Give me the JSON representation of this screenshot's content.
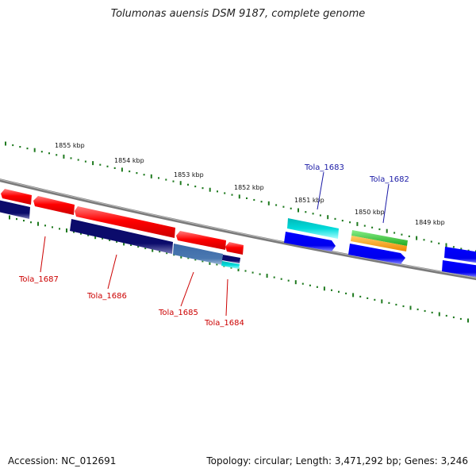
{
  "title": "Tolumonas auensis DSM 9187, complete genome",
  "footer": {
    "accession": "Accession: NC_012691",
    "summary": "Topology: circular; Length: 3,471,292 bp; Genes: 3,246"
  },
  "kbp_labels": [
    "1855 kbp",
    "1854 kbp",
    "1853 kbp",
    "1852 kbp",
    "1851 kbp",
    "1850 kbp",
    "1849 kbp"
  ],
  "gene_labels": {
    "tola_1683": "Tola_1683",
    "tola_1682": "Tola_1682",
    "tola_1687": "Tola_1687",
    "tola_1686": "Tola_1686",
    "tola_1685": "Tola_1685",
    "tola_1684": "Tola_1684"
  },
  "colors": {
    "forward_label": "#1a1aa6",
    "reverse_label": "#cc0000",
    "red": "#ff0000",
    "navy": "#0b0b6b",
    "blue": "#0000ff",
    "steel": "#4a78b0",
    "cyan": "#00d4d4",
    "green": "#33bb33",
    "orange": "#ff9900",
    "backbone": "#777777",
    "ruler": "#1f7a1f"
  }
}
